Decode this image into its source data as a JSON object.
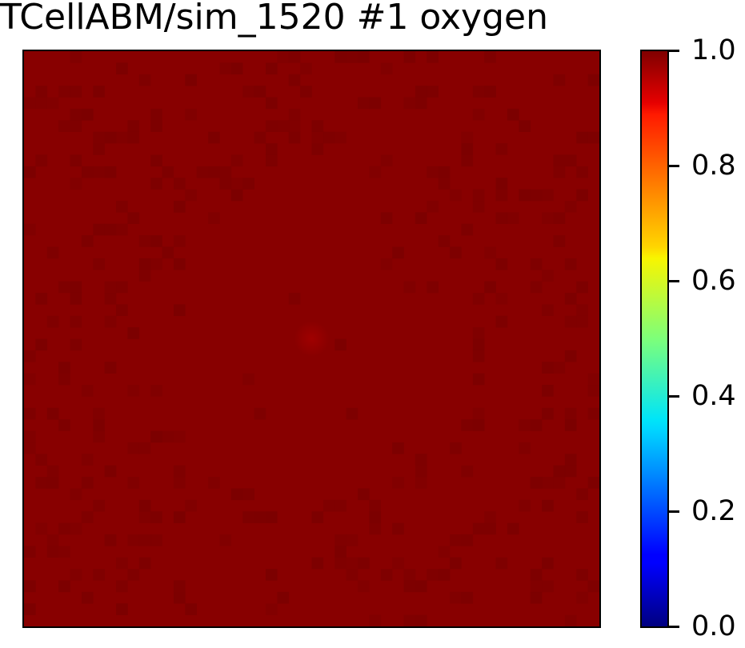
{
  "title": "TCellABM/sim_1520 #1 oxygen",
  "chart_data": {
    "type": "heatmap",
    "title": "TCellABM/sim_1520 #1 oxygen",
    "colormap": "jet",
    "value_range": [
      0.0,
      1.0
    ],
    "background_value": 0.98,
    "center_spot_value": 1.0,
    "cell_patch_value": 0.96,
    "grid_size": 50,
    "x_ticks": [],
    "y_ticks": [],
    "colorbar": {
      "ticks": [
        0.0,
        0.2,
        0.4,
        0.6,
        0.8,
        1.0
      ],
      "tick_labels": [
        "0.0",
        "0.2",
        "0.4",
        "0.6",
        "0.8",
        "1.0"
      ]
    }
  },
  "colors": {
    "heatmap_background": "#880000",
    "heatmap_cell_patch": "#7c0000",
    "center_spot": "#a00000"
  }
}
